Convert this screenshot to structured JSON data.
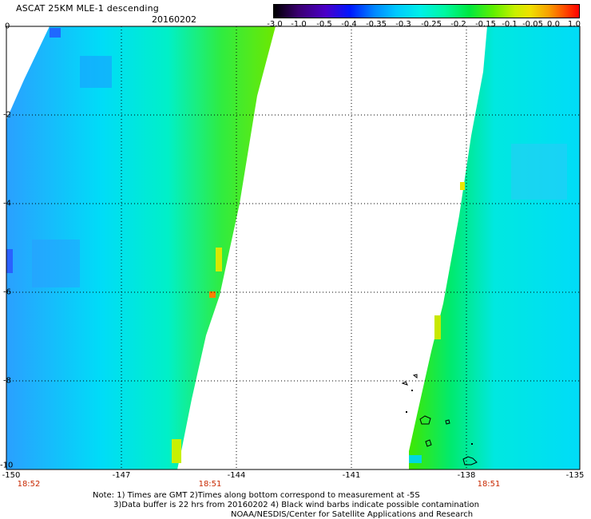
{
  "header": {
    "title": "ASCAT 25KM MLE-1 descending",
    "date": "20160202"
  },
  "colorbar": {
    "ticks": [
      "-3.0",
      "-1.0",
      "-0.5",
      "-0.4",
      "-0.35",
      "-0.3",
      "-0.25",
      "-0.2",
      "-0.15",
      "-0.1",
      "-0.05",
      "0.0",
      "1.0"
    ]
  },
  "axes": {
    "y_labels": [
      "0",
      "-2",
      "-4",
      "-6",
      "-8",
      "-10"
    ],
    "x_labels": [
      "-150",
      "-147",
      "-144",
      "-141",
      "-138",
      "-135"
    ],
    "time_labels": [
      "18:52",
      "18:51",
      "18:51"
    ]
  },
  "notes": [
    "Note: 1) Times are GMT 2)Times along bottom correspond to measurement at -5S",
    "3)Data buffer is 22 hrs from 20160202 4) Black wind barbs indicate possible contamination",
    "NOAA/NESDIS/Center for Satellite Applications and Research"
  ],
  "colors": {
    "background": "#ffffff",
    "time_label": "#c82800"
  }
}
